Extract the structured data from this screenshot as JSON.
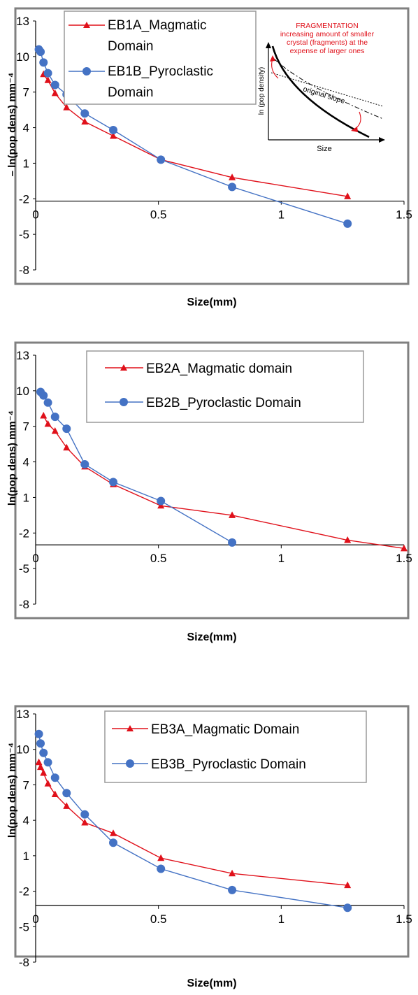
{
  "colors": {
    "magmatic": "#e0101a",
    "pyroclastic": "#4472c4",
    "frame": "#808080",
    "annotation": "#e0101a"
  },
  "chart_data": [
    {
      "type": "line",
      "ylabel": "– ln(pop dens) mm⁻⁴",
      "xlabel": "Size(mm)",
      "xlim": [
        0,
        1.5
      ],
      "ylim": [
        -8,
        13
      ],
      "x_ticks": [
        "0",
        "0.5",
        "1",
        "1.5"
      ],
      "y_ticks": [
        "13",
        "10",
        "7",
        "4",
        "1",
        "-2",
        "-5",
        "-8"
      ],
      "x_axis_at": -2.2,
      "legend_position": "top-left",
      "series": [
        {
          "name": "EB1A_Magmatic Domain",
          "marker": "triangle",
          "x": [
            0.032,
            0.05,
            0.079,
            0.126,
            0.2,
            0.316,
            0.51,
            0.8,
            1.27
          ],
          "y": [
            8.5,
            8.0,
            6.9,
            5.7,
            4.5,
            3.3,
            1.3,
            -0.2,
            -1.8
          ]
        },
        {
          "name": "EB1B_Pyroclastic Domain",
          "marker": "circle",
          "x": [
            0.013,
            0.02,
            0.032,
            0.05,
            0.079,
            0.126,
            0.2,
            0.316,
            0.51,
            0.8,
            1.27
          ],
          "y": [
            10.6,
            10.4,
            9.5,
            8.6,
            7.6,
            6.8,
            5.2,
            3.8,
            1.3,
            -1.0,
            -4.1
          ]
        }
      ],
      "inset": {
        "title": "FRAGMENTATION",
        "text_lines": [
          "increasing amount of smaller",
          "crystal (fragments) at the",
          "expense of larger ones"
        ],
        "slope_label": "original slope",
        "ylabel": "ln (pop density)",
        "xlabel": "Size"
      }
    },
    {
      "type": "line",
      "ylabel": "ln(pop dens) mm⁻⁴",
      "xlabel": "Size(mm)",
      "xlim": [
        0,
        1.5
      ],
      "ylim": [
        -8,
        13
      ],
      "x_ticks": [
        "0",
        "0.5",
        "1",
        "1.5"
      ],
      "y_ticks": [
        "13",
        "10",
        "7",
        "4",
        "1",
        "-2",
        "-5",
        "-8"
      ],
      "x_axis_at": -3.0,
      "legend_position": "top-center",
      "series": [
        {
          "name": "EB2A_Magmatic domain",
          "marker": "triangle",
          "x": [
            0.032,
            0.05,
            0.079,
            0.126,
            0.2,
            0.316,
            0.51,
            0.8,
            1.27,
            1.5
          ],
          "y": [
            7.9,
            7.2,
            6.6,
            5.2,
            3.6,
            2.1,
            0.3,
            -0.5,
            -2.6,
            -3.3
          ]
        },
        {
          "name": "EB2B_Pyroclastic Domain",
          "marker": "circle",
          "x": [
            0.02,
            0.032,
            0.05,
            0.079,
            0.126,
            0.2,
            0.316,
            0.51,
            0.8
          ],
          "y": [
            9.9,
            9.6,
            9.0,
            7.8,
            6.8,
            3.8,
            2.3,
            0.7,
            -2.8
          ]
        }
      ]
    },
    {
      "type": "line",
      "ylabel": "ln(pop dens) mm⁻⁴",
      "xlabel": "Size(mm)",
      "xlim": [
        0,
        1.5
      ],
      "ylim": [
        -8,
        13
      ],
      "x_ticks": [
        "0",
        "0.5",
        "1",
        "1.5"
      ],
      "y_ticks": [
        "13",
        "10",
        "7",
        "4",
        "1",
        "-2",
        "-5",
        "-8"
      ],
      "x_axis_at": -3.2,
      "legend_position": "top-right",
      "series": [
        {
          "name": "EB3A_Magmatic Domain",
          "marker": "triangle",
          "x": [
            0.013,
            0.02,
            0.032,
            0.05,
            0.079,
            0.126,
            0.2,
            0.316,
            0.51,
            0.8,
            1.27
          ],
          "y": [
            8.9,
            8.5,
            8.0,
            7.1,
            6.2,
            5.2,
            3.8,
            2.9,
            0.8,
            -0.5,
            -1.5
          ]
        },
        {
          "name": "EB3B_Pyroclastic Domain",
          "marker": "circle",
          "x": [
            0.013,
            0.02,
            0.032,
            0.05,
            0.079,
            0.126,
            0.2,
            0.316,
            0.51,
            0.8,
            1.27
          ],
          "y": [
            11.3,
            10.5,
            9.7,
            8.9,
            7.6,
            6.3,
            4.5,
            2.1,
            -0.1,
            -1.9,
            -3.4
          ]
        }
      ]
    }
  ]
}
